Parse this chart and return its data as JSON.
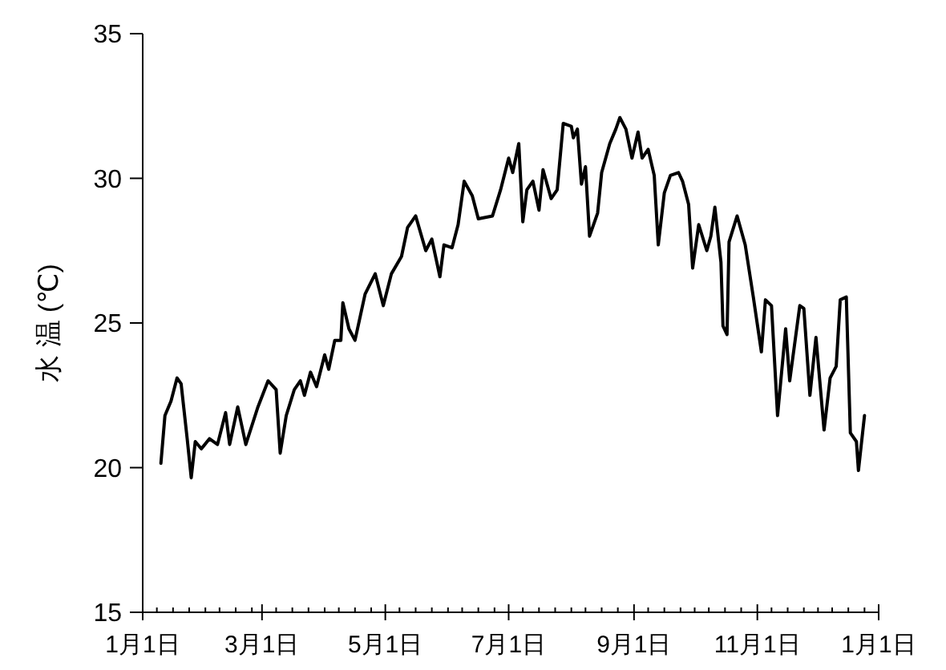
{
  "chart_data": {
    "type": "line",
    "ylabel": "水 温 (℃)",
    "xlim": [
      "--01-01",
      "--12-31"
    ],
    "xticks": [
      {
        "value": "--01-01",
        "label": "1月1日"
      },
      {
        "value": "--01-08",
        "label": null
      },
      {
        "value": "--01-16",
        "label": null
      },
      {
        "value": "--01-24",
        "label": null
      },
      {
        "value": "--02-01",
        "label": null
      },
      {
        "value": "--02-08",
        "label": null
      },
      {
        "value": "--02-16",
        "label": null
      },
      {
        "value": "--02-24",
        "label": null
      },
      {
        "value": "--03-01",
        "label": "3月1日"
      },
      {
        "value": "--03-08",
        "label": null
      },
      {
        "value": "--03-16",
        "label": null
      },
      {
        "value": "--03-24",
        "label": null
      },
      {
        "value": "--04-01",
        "label": null
      },
      {
        "value": "--04-08",
        "label": null
      },
      {
        "value": "--04-16",
        "label": null
      },
      {
        "value": "--04-24",
        "label": null
      },
      {
        "value": "--05-01",
        "label": "5月1日"
      },
      {
        "value": "--05-08",
        "label": null
      },
      {
        "value": "--05-16",
        "label": null
      },
      {
        "value": "--05-24",
        "label": null
      },
      {
        "value": "--06-01",
        "label": null
      },
      {
        "value": "--06-08",
        "label": null
      },
      {
        "value": "--06-16",
        "label": null
      },
      {
        "value": "--06-24",
        "label": null
      },
      {
        "value": "--07-01",
        "label": "7月1日"
      },
      {
        "value": "--07-08",
        "label": null
      },
      {
        "value": "--07-16",
        "label": null
      },
      {
        "value": "--07-24",
        "label": null
      },
      {
        "value": "--08-01",
        "label": null
      },
      {
        "value": "--08-08",
        "label": null
      },
      {
        "value": "--08-16",
        "label": null
      },
      {
        "value": "--08-24",
        "label": null
      },
      {
        "value": "--09-01",
        "label": "9月1日"
      },
      {
        "value": "--09-08",
        "label": null
      },
      {
        "value": "--09-16",
        "label": null
      },
      {
        "value": "--09-24",
        "label": null
      },
      {
        "value": "--10-01",
        "label": null
      },
      {
        "value": "--10-08",
        "label": null
      },
      {
        "value": "--10-16",
        "label": null
      },
      {
        "value": "--10-24",
        "label": null
      },
      {
        "value": "--11-01",
        "label": "11月1日"
      },
      {
        "value": "--11-08",
        "label": null
      },
      {
        "value": "--11-16",
        "label": null
      },
      {
        "value": "--11-24",
        "label": null
      },
      {
        "value": "--12-01",
        "label": null
      },
      {
        "value": "--12-08",
        "label": null
      },
      {
        "value": "--12-16",
        "label": null
      },
      {
        "value": "--12-24",
        "label": null
      },
      {
        "value": "--12-31",
        "label": "1月1日"
      }
    ],
    "ylim": [
      15,
      35
    ],
    "yticks": [
      15,
      20,
      25,
      30,
      35
    ],
    "grid": false,
    "marker": "none",
    "line_style": "solid",
    "series": [
      {
        "color": "#000000",
        "x": [
          "--01-10",
          "--01-12",
          "--01-15",
          "--01-18",
          "--01-20",
          "--01-23",
          "--01-25",
          "--01-27",
          "--01-30",
          "--02-03",
          "--02-07",
          "--02-11",
          "--02-13",
          "--02-17",
          "--02-21",
          "--02-27",
          "--03-04",
          "--03-08",
          "--03-10",
          "--03-13",
          "--03-17",
          "--03-20",
          "--03-22",
          "--03-25",
          "--03-28",
          "--04-01",
          "--04-03",
          "--04-06",
          "--04-09",
          "--04-10",
          "--04-13",
          "--04-16",
          "--04-21",
          "--04-26",
          "--04-30",
          "--05-04",
          "--05-09",
          "--05-12",
          "--05-16",
          "--05-21",
          "--05-24",
          "--05-28",
          "--05-30",
          "--06-03",
          "--06-06",
          "--06-09",
          "--06-13",
          "--06-16",
          "--06-23",
          "--06-27",
          "--07-01",
          "--07-03",
          "--07-06",
          "--07-08",
          "--07-10",
          "--07-13",
          "--07-16",
          "--07-18",
          "--07-22",
          "--07-25",
          "--07-28",
          "--08-01",
          "--08-02",
          "--08-04",
          "--08-06",
          "--08-08",
          "--08-10",
          "--08-14",
          "--08-16",
          "--08-20",
          "--08-23",
          "--08-25",
          "--08-28",
          "--08-31",
          "--09-03",
          "--09-05",
          "--09-08",
          "--09-11",
          "--09-13",
          "--09-16",
          "--09-19",
          "--09-23",
          "--09-25",
          "--09-28",
          "--09-30",
          "--10-03",
          "--10-07",
          "--10-09",
          "--10-11",
          "--10-14",
          "--10-15",
          "--10-17",
          "--10-18",
          "--10-22",
          "--10-26",
          "--10-30",
          "--11-03",
          "--11-05",
          "--11-08",
          "--11-11",
          "--11-15",
          "--11-17",
          "--11-22",
          "--11-24",
          "--11-27",
          "--11-30",
          "--12-04",
          "--12-07",
          "--12-10",
          "--12-12",
          "--12-15",
          "--12-17",
          "--12-20",
          "--12-21",
          "--12-24"
        ],
        "values": [
          20.15,
          21.8,
          22.3,
          23.1,
          22.9,
          21.0,
          19.65,
          20.9,
          20.65,
          21.0,
          20.8,
          21.9,
          20.8,
          22.1,
          20.8,
          22.1,
          23.0,
          22.7,
          20.5,
          21.8,
          22.7,
          23.0,
          22.5,
          23.3,
          22.8,
          23.9,
          23.4,
          24.4,
          24.4,
          25.7,
          24.8,
          24.4,
          26.0,
          26.7,
          25.6,
          26.7,
          27.3,
          28.3,
          28.7,
          27.5,
          27.9,
          26.6,
          27.7,
          27.6,
          28.4,
          29.9,
          29.4,
          28.6,
          28.7,
          29.6,
          30.7,
          30.2,
          31.2,
          28.5,
          29.6,
          29.9,
          28.9,
          30.3,
          29.3,
          29.6,
          31.9,
          31.8,
          31.4,
          31.7,
          29.8,
          30.4,
          28.0,
          28.8,
          30.2,
          31.2,
          31.7,
          32.1,
          31.7,
          30.7,
          31.6,
          30.7,
          31.0,
          30.1,
          27.7,
          29.5,
          30.1,
          30.2,
          29.9,
          29.1,
          26.9,
          28.4,
          27.5,
          28.0,
          29.0,
          27.1,
          24.9,
          24.6,
          27.8,
          28.7,
          27.7,
          25.9,
          24.0,
          25.8,
          25.6,
          21.8,
          24.8,
          23.0,
          25.6,
          25.5,
          22.5,
          24.5,
          21.3,
          23.1,
          23.5,
          25.8,
          25.9,
          21.2,
          20.9,
          19.9,
          21.8
        ]
      }
    ]
  }
}
